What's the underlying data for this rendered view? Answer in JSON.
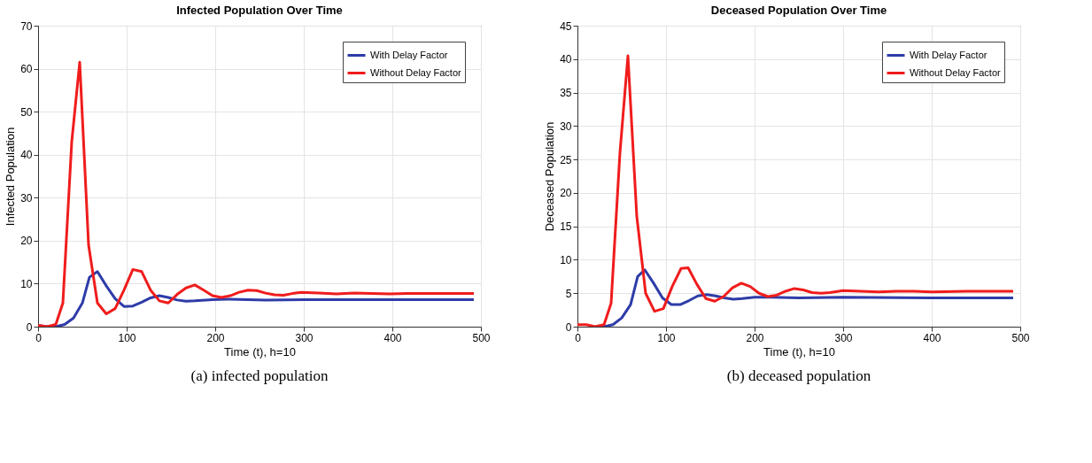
{
  "chart_data": [
    {
      "type": "line",
      "title": "Infected Population Over Time",
      "xlabel": "Time (t), h=10",
      "ylabel": "Infected Population",
      "xlim": [
        0,
        500
      ],
      "xticks": [
        0,
        100,
        200,
        300,
        400,
        500
      ],
      "ylim": [
        0,
        70
      ],
      "yticks": [
        0,
        10,
        20,
        30,
        40,
        50,
        60,
        70
      ],
      "grid": true,
      "legend": "top right",
      "annotations": [
        "(a) infected population"
      ],
      "series": [
        {
          "name": "With Delay Factor",
          "color": "#2e3ca8",
          "x": [
            0,
            10,
            20,
            30,
            40,
            50,
            58,
            67,
            77,
            87,
            97,
            107,
            117,
            127,
            137,
            147,
            157,
            167,
            177,
            197,
            217,
            237,
            257,
            300,
            400,
            492
          ],
          "values": [
            0.3,
            0,
            0,
            0.5,
            2,
            5.5,
            11.5,
            12.8,
            9.5,
            6.5,
            4.7,
            4.8,
            5.7,
            6.7,
            7.2,
            6.8,
            6.2,
            5.9,
            6,
            6.3,
            6.4,
            6.3,
            6.2,
            6.3,
            6.3,
            6.3
          ]
        },
        {
          "name": "Without Delay Factor",
          "color": "#f01c1c",
          "x": [
            0,
            10,
            20,
            28,
            38,
            47,
            57,
            67,
            77,
            87,
            97,
            107,
            117,
            127,
            137,
            147,
            157,
            167,
            177,
            187,
            197,
            207,
            217,
            227,
            237,
            247,
            257,
            267,
            277,
            287,
            297,
            317,
            337,
            357,
            377,
            397,
            417,
            437,
            457,
            492
          ],
          "values": [
            0.3,
            0,
            0.5,
            5.5,
            43,
            61.5,
            19,
            5.5,
            3,
            4.2,
            8.5,
            13.3,
            12.8,
            8.5,
            6,
            5.5,
            7.5,
            9,
            9.7,
            8.5,
            7.2,
            6.8,
            7.2,
            8,
            8.5,
            8.4,
            7.8,
            7.4,
            7.3,
            7.7,
            8,
            7.8,
            7.6,
            7.8,
            7.7,
            7.6,
            7.7,
            7.7,
            7.7,
            7.7
          ]
        }
      ]
    },
    {
      "type": "line",
      "title": "Deceased Population Over Time",
      "xlabel": "Time (t), h=10",
      "ylabel": "Deceased Population",
      "xlim": [
        0,
        500
      ],
      "xticks": [
        0,
        100,
        200,
        300,
        400,
        500
      ],
      "ylim": [
        0,
        45
      ],
      "yticks": [
        0,
        5,
        10,
        15,
        20,
        25,
        30,
        35,
        40,
        45
      ],
      "grid": true,
      "legend": "top right",
      "annotations": [
        "(b) deceased population"
      ],
      "series": [
        {
          "name": "With Delay Factor",
          "color": "#2e3ca8",
          "x": [
            20,
            30,
            40,
            50,
            60,
            68,
            76,
            86,
            96,
            106,
            116,
            126,
            136,
            146,
            156,
            166,
            176,
            186,
            200,
            220,
            250,
            300,
            400,
            492
          ],
          "values": [
            0,
            0,
            0.3,
            1.3,
            3.3,
            7.5,
            8.5,
            6.5,
            4.3,
            3.3,
            3.3,
            3.9,
            4.6,
            4.8,
            4.6,
            4.3,
            4.1,
            4.2,
            4.4,
            4.4,
            4.3,
            4.4,
            4.3,
            4.3
          ]
        },
        {
          "name": "Without Delay Factor",
          "color": "#f01c1c",
          "x": [
            0,
            10,
            20,
            30,
            38,
            48,
            57,
            67,
            77,
            87,
            97,
            107,
            117,
            125,
            135,
            145,
            155,
            165,
            175,
            185,
            195,
            205,
            215,
            225,
            235,
            245,
            255,
            265,
            275,
            285,
            300,
            320,
            340,
            360,
            380,
            400,
            440,
            492
          ],
          "values": [
            0.3,
            0.3,
            0,
            0.3,
            3.5,
            26,
            40.5,
            16.5,
            5,
            2.3,
            2.7,
            6,
            8.7,
            8.8,
            6.3,
            4.2,
            3.8,
            4.5,
            5.8,
            6.5,
            6,
            5,
            4.5,
            4.7,
            5.3,
            5.7,
            5.5,
            5.1,
            5,
            5.1,
            5.4,
            5.3,
            5.2,
            5.3,
            5.3,
            5.2,
            5.3,
            5.3
          ]
        }
      ]
    }
  ]
}
